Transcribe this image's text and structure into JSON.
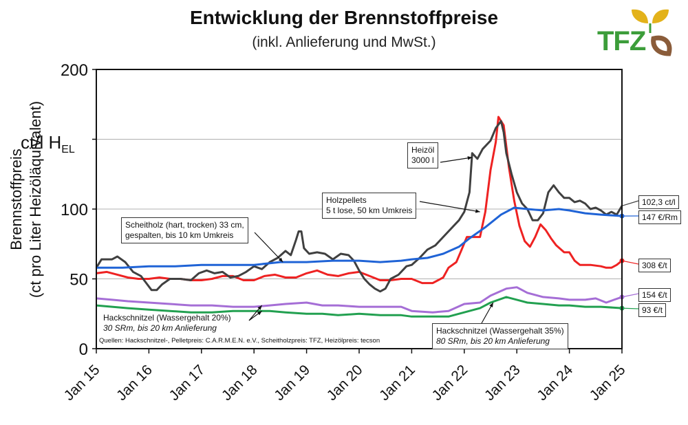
{
  "title": "Entwicklung der Brennstoffpreise",
  "subtitle": "(inkl. Anlieferung und MwSt.)",
  "logo": {
    "text": "TFZ",
    "leaf_colors": [
      "#e3b21a",
      "#8a5c3a",
      "#3c9d3a"
    ]
  },
  "source": "Quellen: Hackschnitzel-, Pelletpreis: C.A.R.M.E.N. e.V., Scheitholzpreis: TFZ, Heizölpreis: tecson",
  "unit_label": {
    "main": "ct/l H",
    "sub": "EL"
  },
  "chart_data": {
    "type": "line",
    "ylabel_line1": "Brennstoffpreis",
    "ylabel_line2": "(ct pro Liter Heizöläquivalent)",
    "ylim": [
      0,
      200
    ],
    "xlim": [
      2015,
      2025
    ],
    "yticks": [
      0,
      50,
      100,
      150,
      200
    ],
    "ytick_labels": [
      "0",
      "50",
      "100",
      "",
      "200"
    ],
    "xticks": [
      2015,
      2016,
      2017,
      2018,
      2019,
      2020,
      2021,
      2022,
      2023,
      2024,
      2025
    ],
    "xtick_labels": [
      "Jan 15",
      "Jan 16",
      "Jan 17",
      "Jan 18",
      "Jan 19",
      "Jan 20",
      "Jan 21",
      "Jan 22",
      "Jan 23",
      "Jan 24",
      "Jan 25"
    ],
    "grid": true,
    "series": [
      {
        "key": "heizoel",
        "name": "Heizöl 3000 l",
        "label_line1": "Heizöl",
        "label_line2": "3000 l",
        "color": "#404040",
        "end_label": "102,3 ct/l",
        "end_marker": false,
        "points": [
          [
            2015.0,
            58
          ],
          [
            2015.1,
            64
          ],
          [
            2015.3,
            64
          ],
          [
            2015.4,
            66
          ],
          [
            2015.55,
            62
          ],
          [
            2015.7,
            55
          ],
          [
            2015.85,
            52
          ],
          [
            2015.95,
            47
          ],
          [
            2016.05,
            42
          ],
          [
            2016.15,
            42
          ],
          [
            2016.25,
            46
          ],
          [
            2016.4,
            50
          ],
          [
            2016.6,
            50
          ],
          [
            2016.8,
            49
          ],
          [
            2016.95,
            54
          ],
          [
            2017.1,
            56
          ],
          [
            2017.25,
            54
          ],
          [
            2017.4,
            55
          ],
          [
            2017.55,
            51
          ],
          [
            2017.7,
            52
          ],
          [
            2017.85,
            55
          ],
          [
            2018.0,
            59
          ],
          [
            2018.15,
            57
          ],
          [
            2018.3,
            62
          ],
          [
            2018.45,
            65
          ],
          [
            2018.6,
            70
          ],
          [
            2018.7,
            67
          ],
          [
            2018.8,
            78
          ],
          [
            2018.85,
            84
          ],
          [
            2018.9,
            84
          ],
          [
            2018.95,
            72
          ],
          [
            2019.05,
            68
          ],
          [
            2019.2,
            69
          ],
          [
            2019.35,
            68
          ],
          [
            2019.5,
            64
          ],
          [
            2019.65,
            68
          ],
          [
            2019.8,
            67
          ],
          [
            2019.9,
            63
          ],
          [
            2020.0,
            56
          ],
          [
            2020.1,
            50
          ],
          [
            2020.2,
            46
          ],
          [
            2020.3,
            43
          ],
          [
            2020.4,
            41
          ],
          [
            2020.5,
            43
          ],
          [
            2020.6,
            50
          ],
          [
            2020.75,
            53
          ],
          [
            2020.9,
            59
          ],
          [
            2021.0,
            60
          ],
          [
            2021.15,
            65
          ],
          [
            2021.3,
            71
          ],
          [
            2021.45,
            74
          ],
          [
            2021.6,
            80
          ],
          [
            2021.75,
            86
          ],
          [
            2021.9,
            92
          ],
          [
            2022.0,
            98
          ],
          [
            2022.1,
            112
          ],
          [
            2022.15,
            140
          ],
          [
            2022.25,
            136
          ],
          [
            2022.35,
            143
          ],
          [
            2022.5,
            149
          ],
          [
            2022.6,
            158
          ],
          [
            2022.7,
            163
          ],
          [
            2022.75,
            155
          ],
          [
            2022.8,
            140
          ],
          [
            2022.9,
            125
          ],
          [
            2023.0,
            112
          ],
          [
            2023.1,
            104
          ],
          [
            2023.2,
            100
          ],
          [
            2023.3,
            92
          ],
          [
            2023.4,
            92
          ],
          [
            2023.5,
            97
          ],
          [
            2023.6,
            112
          ],
          [
            2023.7,
            117
          ],
          [
            2023.8,
            112
          ],
          [
            2023.9,
            108
          ],
          [
            2024.0,
            108
          ],
          [
            2024.1,
            105
          ],
          [
            2024.2,
            106
          ],
          [
            2024.3,
            104
          ],
          [
            2024.4,
            100
          ],
          [
            2024.5,
            101
          ],
          [
            2024.6,
            99
          ],
          [
            2024.7,
            96
          ],
          [
            2024.8,
            98
          ],
          [
            2024.9,
            96
          ],
          [
            2025.0,
            102.3
          ]
        ]
      },
      {
        "key": "pellets",
        "name": "Holzpellets 5 t lose, 50 km Umkreis",
        "label_line1": "Holzpellets",
        "label_line2": "5 t lose, 50 km Umkreis",
        "color": "#ee2222",
        "end_label": "308 €/t",
        "end_marker": true,
        "points": [
          [
            2015.0,
            54
          ],
          [
            2015.2,
            55
          ],
          [
            2015.4,
            53
          ],
          [
            2015.6,
            51
          ],
          [
            2015.8,
            50
          ],
          [
            2016.0,
            50
          ],
          [
            2016.2,
            51
          ],
          [
            2016.4,
            50
          ],
          [
            2016.6,
            50
          ],
          [
            2016.8,
            49
          ],
          [
            2017.0,
            49
          ],
          [
            2017.2,
            50
          ],
          [
            2017.4,
            52
          ],
          [
            2017.6,
            52
          ],
          [
            2017.8,
            49
          ],
          [
            2018.0,
            49
          ],
          [
            2018.2,
            52
          ],
          [
            2018.4,
            53
          ],
          [
            2018.6,
            51
          ],
          [
            2018.8,
            51
          ],
          [
            2019.0,
            54
          ],
          [
            2019.2,
            56
          ],
          [
            2019.4,
            53
          ],
          [
            2019.6,
            52
          ],
          [
            2019.8,
            54
          ],
          [
            2020.0,
            55
          ],
          [
            2020.2,
            52
          ],
          [
            2020.4,
            49
          ],
          [
            2020.6,
            49
          ],
          [
            2020.8,
            50
          ],
          [
            2021.0,
            50
          ],
          [
            2021.2,
            47
          ],
          [
            2021.4,
            47
          ],
          [
            2021.6,
            51
          ],
          [
            2021.7,
            58
          ],
          [
            2021.85,
            62
          ],
          [
            2021.95,
            71
          ],
          [
            2022.05,
            80
          ],
          [
            2022.2,
            80
          ],
          [
            2022.3,
            80
          ],
          [
            2022.4,
            98
          ],
          [
            2022.5,
            128
          ],
          [
            2022.6,
            148
          ],
          [
            2022.65,
            166
          ],
          [
            2022.75,
            160
          ],
          [
            2022.85,
            130
          ],
          [
            2022.95,
            106
          ],
          [
            2023.05,
            88
          ],
          [
            2023.15,
            77
          ],
          [
            2023.25,
            73
          ],
          [
            2023.35,
            80
          ],
          [
            2023.45,
            89
          ],
          [
            2023.55,
            85
          ],
          [
            2023.65,
            79
          ],
          [
            2023.75,
            74
          ],
          [
            2023.9,
            69
          ],
          [
            2024.0,
            69
          ],
          [
            2024.1,
            63
          ],
          [
            2024.2,
            60
          ],
          [
            2024.4,
            60
          ],
          [
            2024.6,
            59
          ],
          [
            2024.7,
            58
          ],
          [
            2024.8,
            58
          ],
          [
            2024.9,
            60
          ],
          [
            2025.0,
            63
          ]
        ]
      },
      {
        "key": "scheitholz",
        "name": "Scheitholz (hart, trocken) 33 cm, gespalten, bis 10 km Umkreis",
        "label_line1": "Scheitholz (hart, trocken) 33 cm,",
        "label_line2": "gespalten, bis 10 km Umkreis",
        "color": "#1f63d6",
        "end_label": "147 €/Rm",
        "end_marker": true,
        "points": [
          [
            2015.0,
            58
          ],
          [
            2015.5,
            58
          ],
          [
            2016.0,
            59
          ],
          [
            2016.5,
            59
          ],
          [
            2017.0,
            60
          ],
          [
            2017.5,
            60
          ],
          [
            2018.0,
            60
          ],
          [
            2018.5,
            62
          ],
          [
            2019.0,
            62
          ],
          [
            2019.5,
            63
          ],
          [
            2020.0,
            63
          ],
          [
            2020.4,
            62
          ],
          [
            2020.8,
            63
          ],
          [
            2021.0,
            64
          ],
          [
            2021.3,
            65
          ],
          [
            2021.6,
            68
          ],
          [
            2021.9,
            73
          ],
          [
            2022.1,
            79
          ],
          [
            2022.4,
            87
          ],
          [
            2022.7,
            96
          ],
          [
            2022.95,
            101
          ],
          [
            2023.2,
            100
          ],
          [
            2023.5,
            99
          ],
          [
            2023.8,
            100
          ],
          [
            2024.0,
            99
          ],
          [
            2024.3,
            97
          ],
          [
            2024.6,
            96
          ],
          [
            2025.0,
            95
          ]
        ]
      },
      {
        "key": "hack20",
        "name": "Hackschnitzel (Wassergehalt 20%) 30 SRm, bis 20 km Anlieferung",
        "label_line1": "Hackschnitzel (Wassergehalt 20%)",
        "label_line2": "30 SRm, bis 20 km Anlieferung",
        "color": "#a56ed6",
        "end_label": "154 €/t",
        "end_marker": true,
        "points": [
          [
            2015.0,
            36
          ],
          [
            2015.3,
            35
          ],
          [
            2015.6,
            34
          ],
          [
            2016.0,
            33
          ],
          [
            2016.4,
            32
          ],
          [
            2016.8,
            31
          ],
          [
            2017.2,
            31
          ],
          [
            2017.6,
            30
          ],
          [
            2018.0,
            30
          ],
          [
            2018.3,
            31
          ],
          [
            2018.6,
            32
          ],
          [
            2019.0,
            33
          ],
          [
            2019.3,
            31
          ],
          [
            2019.6,
            31
          ],
          [
            2020.0,
            30
          ],
          [
            2020.4,
            30
          ],
          [
            2020.8,
            30
          ],
          [
            2021.0,
            27
          ],
          [
            2021.4,
            26
          ],
          [
            2021.7,
            27
          ],
          [
            2022.0,
            32
          ],
          [
            2022.3,
            33
          ],
          [
            2022.5,
            38
          ],
          [
            2022.8,
            43
          ],
          [
            2023.0,
            44
          ],
          [
            2023.2,
            40
          ],
          [
            2023.5,
            37
          ],
          [
            2023.8,
            36
          ],
          [
            2024.0,
            35
          ],
          [
            2024.3,
            35
          ],
          [
            2024.5,
            36
          ],
          [
            2024.7,
            33
          ],
          [
            2024.85,
            35
          ],
          [
            2025.0,
            37
          ]
        ]
      },
      {
        "key": "hack35",
        "name": "Hackschnitzel (Wassergehalt 35%) 80 SRm, bis 20 km Anlieferung",
        "label_line1": "Hackschnitzel (Wassergehalt 35%)",
        "label_line2": "80 SRm, bis 20 km Anlieferung",
        "color": "#22a050",
        "end_label": "93 €/t",
        "end_marker": true,
        "points": [
          [
            2015.0,
            31
          ],
          [
            2015.3,
            30
          ],
          [
            2015.6,
            29
          ],
          [
            2016.0,
            28
          ],
          [
            2016.4,
            27
          ],
          [
            2016.8,
            26
          ],
          [
            2017.2,
            26
          ],
          [
            2017.6,
            27
          ],
          [
            2018.0,
            27
          ],
          [
            2018.3,
            27
          ],
          [
            2018.6,
            26
          ],
          [
            2019.0,
            25
          ],
          [
            2019.3,
            25
          ],
          [
            2019.6,
            24
          ],
          [
            2020.0,
            25
          ],
          [
            2020.4,
            24
          ],
          [
            2020.8,
            24
          ],
          [
            2021.0,
            23
          ],
          [
            2021.4,
            23
          ],
          [
            2021.7,
            23
          ],
          [
            2022.0,
            26
          ],
          [
            2022.3,
            29
          ],
          [
            2022.5,
            33
          ],
          [
            2022.8,
            37
          ],
          [
            2023.0,
            35
          ],
          [
            2023.2,
            33
          ],
          [
            2023.5,
            32
          ],
          [
            2023.8,
            31
          ],
          [
            2024.0,
            31
          ],
          [
            2024.3,
            30
          ],
          [
            2024.6,
            30
          ],
          [
            2025.0,
            29
          ]
        ]
      }
    ]
  }
}
